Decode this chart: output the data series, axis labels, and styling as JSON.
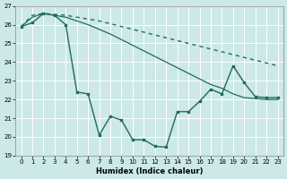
{
  "xlabel": "Humidex (Indice chaleur)",
  "background_color": "#cce8e8",
  "grid_color": "#b8d8d8",
  "line_color": "#1e6b5e",
  "xlim": [
    -0.5,
    23.5
  ],
  "ylim": [
    19,
    27
  ],
  "yticks": [
    19,
    20,
    21,
    22,
    23,
    24,
    25,
    26,
    27
  ],
  "xticks": [
    0,
    1,
    2,
    3,
    4,
    5,
    6,
    7,
    8,
    9,
    10,
    11,
    12,
    13,
    14,
    15,
    16,
    17,
    18,
    19,
    20,
    21,
    22,
    23
  ],
  "series": [
    {
      "x": [
        0,
        1,
        2,
        3,
        4,
        5,
        6,
        7,
        8,
        9,
        10,
        11,
        12,
        13,
        14,
        15,
        16,
        17,
        18,
        19,
        20,
        21,
        22,
        23
      ],
      "y": [
        25.9,
        26.5,
        26.6,
        26.55,
        26.5,
        26.4,
        26.3,
        26.2,
        26.05,
        25.9,
        25.75,
        25.6,
        25.45,
        25.3,
        25.15,
        25.0,
        24.85,
        24.7,
        24.55,
        24.4,
        24.25,
        24.1,
        23.95,
        23.8
      ],
      "style": "dotted",
      "marker": null,
      "linewidth": 1.0
    },
    {
      "x": [
        0,
        1,
        2,
        3,
        4,
        5,
        6,
        7,
        8,
        9,
        10,
        11,
        12,
        13,
        14,
        15,
        16,
        17,
        18,
        19,
        20,
        21,
        22,
        23
      ],
      "y": [
        25.9,
        26.4,
        26.6,
        26.5,
        26.4,
        26.2,
        26.0,
        25.75,
        25.5,
        25.2,
        24.9,
        24.6,
        24.3,
        24.0,
        23.7,
        23.4,
        23.1,
        22.8,
        22.6,
        22.3,
        22.1,
        22.05,
        22.0,
        22.0
      ],
      "style": "solid",
      "marker": null,
      "linewidth": 0.9
    },
    {
      "x": [
        0,
        1,
        2,
        3,
        4,
        5,
        6,
        7,
        8,
        9,
        10,
        11,
        12,
        13,
        14,
        15,
        16,
        17,
        18,
        19,
        20,
        21,
        22,
        23
      ],
      "y": [
        25.9,
        26.1,
        26.6,
        26.5,
        26.0,
        22.4,
        22.3,
        20.1,
        21.1,
        20.9,
        19.85,
        19.85,
        19.5,
        19.45,
        21.35,
        21.35,
        21.9,
        22.55,
        22.3,
        23.8,
        22.9,
        22.15,
        22.1,
        22.1
      ],
      "style": "solid",
      "marker": "s",
      "linewidth": 1.0
    }
  ]
}
